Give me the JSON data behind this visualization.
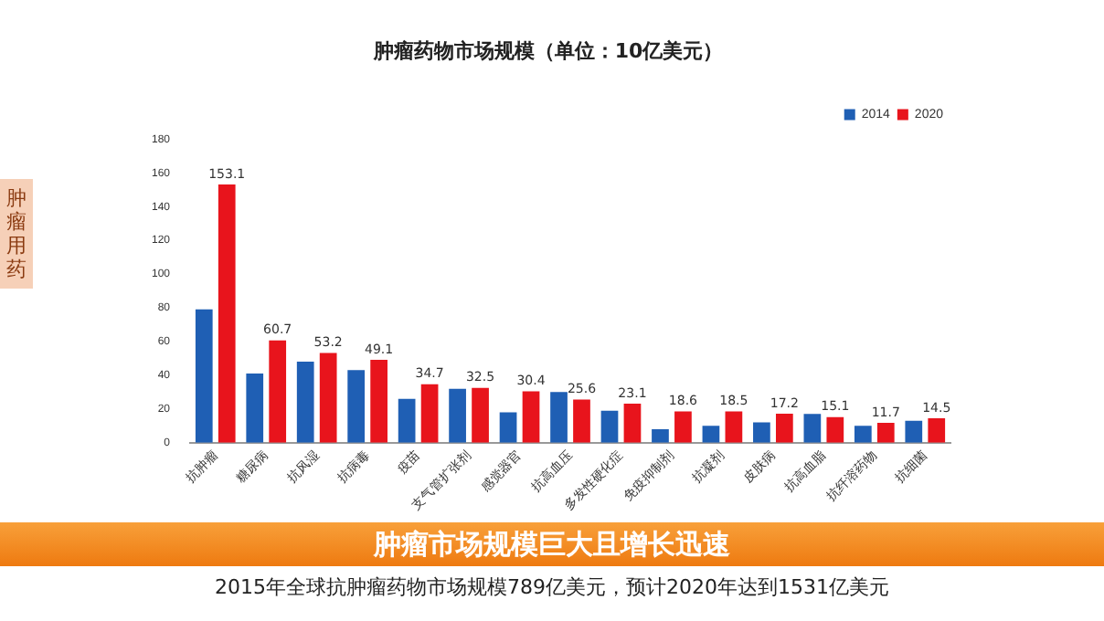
{
  "chart_data": {
    "type": "bar",
    "title": "肿瘤药物市场规模（单位：10亿美元）",
    "categories": [
      "抗肿瘤",
      "糖尿病",
      "抗风湿",
      "抗病毒",
      "疫苗",
      "支气管扩张剂",
      "感觉器官",
      "抗高血压",
      "多发性硬化症",
      "免疫抑制剂",
      "抗凝剂",
      "皮肤病",
      "抗高血脂",
      "抗纤溶药物",
      "抗细菌"
    ],
    "series": [
      {
        "name": "2014",
        "color": "#1f5fb4",
        "values": [
          79,
          41,
          48,
          43,
          26,
          32,
          18,
          30,
          19,
          8,
          10,
          12,
          17,
          10,
          13
        ]
      },
      {
        "name": "2020",
        "color": "#e8141c",
        "values": [
          153.1,
          60.7,
          53.2,
          49.1,
          34.7,
          32.5,
          30.4,
          25.6,
          23.1,
          18.6,
          18.5,
          17.2,
          15.1,
          11.7,
          14.5
        ],
        "value_labels": [
          "153.1",
          "60.7",
          "53.2",
          "49.1",
          "34.7",
          "32.5",
          "30.4",
          "25.6",
          "23.1",
          "18.6",
          "18.5",
          "17.2",
          "15.1",
          "11.7",
          "14.5"
        ]
      }
    ],
    "ylim": [
      0,
      180
    ],
    "yticks": [
      0,
      20,
      40,
      60,
      80,
      100,
      120,
      140,
      160,
      180
    ],
    "grid": false,
    "legend": "top right",
    "annotations": [
      "肿瘤用药",
      "肿瘤市场规模巨大且增长迅速",
      "2015年全球抗肿瘤药物市场规模789亿美元，预计2020年达到1531亿美元"
    ]
  }
}
